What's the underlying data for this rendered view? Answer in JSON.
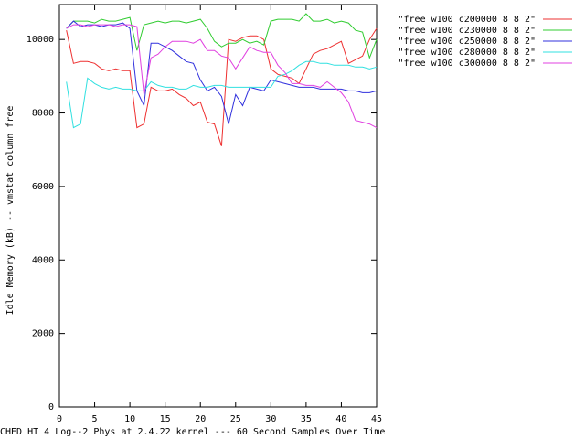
{
  "chart_data": {
    "type": "line",
    "x_label": "CHED HT 4 Log--2 Phys at 2.4.22 kernel --- 60 Second Samples Over Time",
    "y_label": "Idle Memory (kB) -- vmstat column free",
    "x": [
      1,
      2,
      3,
      4,
      5,
      6,
      7,
      8,
      9,
      10,
      11,
      12,
      13,
      14,
      15,
      16,
      17,
      18,
      19,
      20,
      21,
      22,
      23,
      24,
      25,
      26,
      27,
      28,
      29,
      30,
      31,
      32,
      33,
      34,
      35,
      36,
      37,
      38,
      39,
      40,
      41,
      42,
      43,
      44,
      45
    ],
    "series": [
      {
        "name": "\"free w100 c200000 8 8 2\"",
        "color": "#ee3030",
        "values": [
          10250,
          9350,
          9400,
          9400,
          9350,
          9200,
          9150,
          9200,
          9150,
          9150,
          7600,
          7700,
          8700,
          8600,
          8600,
          8650,
          8500,
          8400,
          8200,
          8300,
          7750,
          7700,
          7100,
          10000,
          9950,
          10050,
          10100,
          10100,
          10000,
          9200,
          9050,
          9000,
          8950,
          8800,
          9200,
          9600,
          9700,
          9750,
          9850,
          9950,
          9350,
          9450,
          9550,
          10000,
          10300
        ]
      },
      {
        "name": "\"free w100 c230000 8 8 2\"",
        "color": "#30cc30",
        "values": [
          10300,
          10500,
          10500,
          10500,
          10450,
          10550,
          10500,
          10500,
          10550,
          10600,
          9700,
          10400,
          10450,
          10500,
          10450,
          10500,
          10500,
          10450,
          10500,
          10550,
          10300,
          9950,
          9800,
          9900,
          9900,
          10000,
          9900,
          9950,
          9850,
          10500,
          10550,
          10550,
          10550,
          10500,
          10700,
          10500,
          10500,
          10550,
          10450,
          10500,
          10450,
          10250,
          10200,
          9500,
          10000
        ]
      },
      {
        "name": "\"free w100 c250000 8 8 2\"",
        "color": "#3030dd",
        "values": [
          10300,
          10500,
          10350,
          10400,
          10400,
          10350,
          10400,
          10400,
          10450,
          10300,
          8600,
          8200,
          9900,
          9900,
          9800,
          9700,
          9550,
          9400,
          9350,
          8900,
          8600,
          8700,
          8450,
          7700,
          8500,
          8200,
          8700,
          8650,
          8600,
          8900,
          8850,
          8800,
          8750,
          8700,
          8700,
          8700,
          8650,
          8650,
          8650,
          8650,
          8600,
          8600,
          8550,
          8550,
          8600
        ]
      },
      {
        "name": "\"free w100 c280000 8 8 2\"",
        "color": "#30e0e0",
        "values": [
          8850,
          7600,
          7700,
          8950,
          8800,
          8700,
          8650,
          8700,
          8650,
          8650,
          8600,
          8600,
          8850,
          8750,
          8700,
          8700,
          8650,
          8650,
          8750,
          8700,
          8700,
          8750,
          8750,
          8700,
          8700,
          8700,
          8700,
          8700,
          8700,
          8700,
          9000,
          9050,
          9150,
          9300,
          9400,
          9400,
          9350,
          9350,
          9300,
          9300,
          9300,
          9250,
          9250,
          9200,
          9250
        ]
      },
      {
        "name": "\"free w100 c300000 8 8 2\"",
        "color": "#e040e0",
        "values": [
          10300,
          10400,
          10400,
          10350,
          10400,
          10400,
          10400,
          10350,
          10400,
          10400,
          10350,
          8500,
          9500,
          9600,
          9800,
          9950,
          9950,
          9950,
          9900,
          10000,
          9700,
          9700,
          9550,
          9500,
          9200,
          9500,
          9800,
          9700,
          9650,
          9650,
          9300,
          9100,
          8800,
          8800,
          8750,
          8750,
          8700,
          8850,
          8700,
          8550,
          8300,
          7800,
          7750,
          7700,
          7600
        ]
      }
    ],
    "xlim": [
      0,
      45
    ],
    "xticks": [
      0,
      5,
      10,
      15,
      20,
      25,
      30,
      35,
      40,
      45
    ],
    "ylim": [
      0,
      10950
    ],
    "yticks": [
      0,
      2000,
      4000,
      6000,
      8000,
      10000
    ],
    "grid": false,
    "legend": "top-right"
  }
}
